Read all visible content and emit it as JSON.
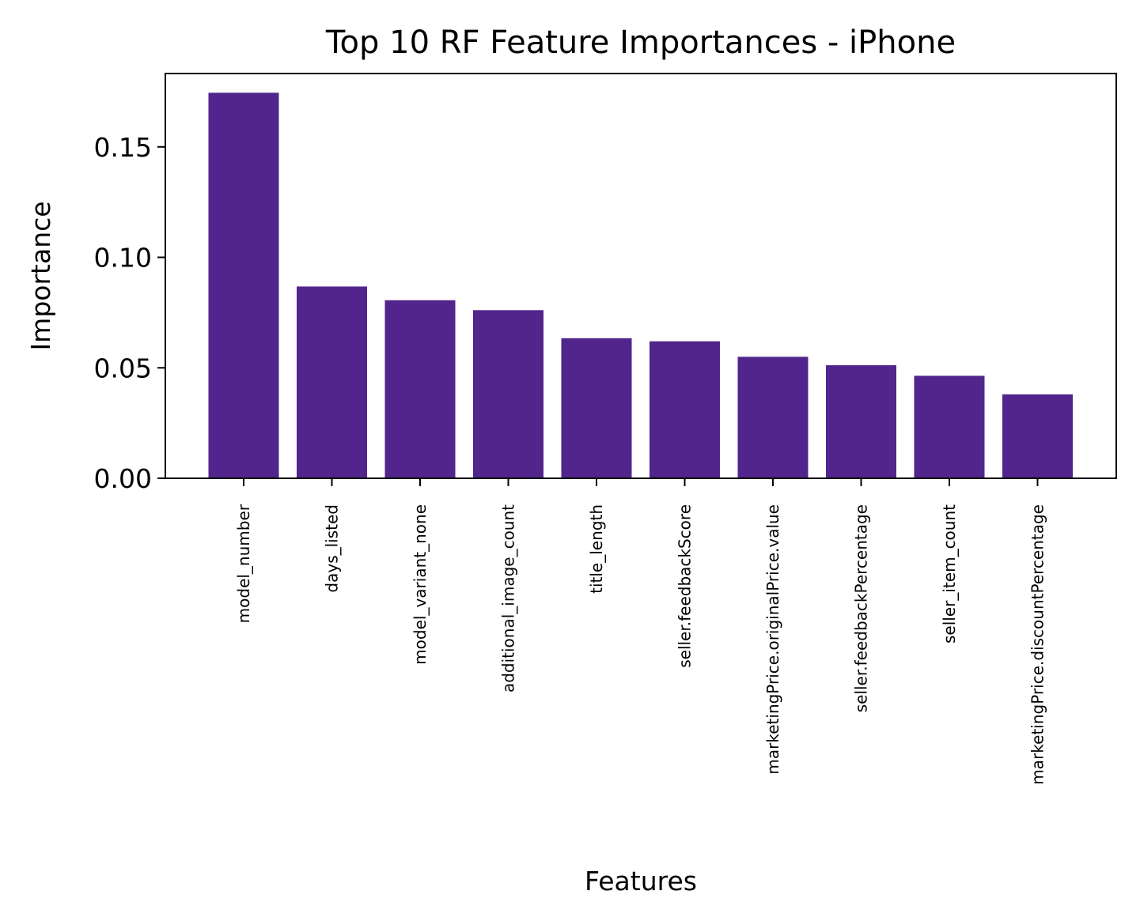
{
  "chart_data": {
    "type": "bar",
    "title": "Top 10 RF Feature Importances - iPhone",
    "xlabel": "Features",
    "ylabel": "Importance",
    "categories": [
      "model_number",
      "days_listed",
      "model_variant_none",
      "additional_image_count",
      "title_length",
      "seller.feedbackScore",
      "marketingPrice.originalPrice.value",
      "seller.feedbackPercentage",
      "seller_item_count",
      "marketingPrice.discountPercentage"
    ],
    "values": [
      0.1745,
      0.0868,
      0.0806,
      0.0761,
      0.0634,
      0.062,
      0.055,
      0.0512,
      0.0464,
      0.038
    ],
    "ylim": [
      0,
      0.1832
    ],
    "yticks": [
      0.0,
      0.05,
      0.1,
      0.15
    ],
    "ytick_labels": [
      "0.00",
      "0.05",
      "0.10",
      "0.15"
    ],
    "grid": false,
    "legend": "none",
    "colors": {
      "bar": "#52258c",
      "axis": "#000000"
    }
  }
}
